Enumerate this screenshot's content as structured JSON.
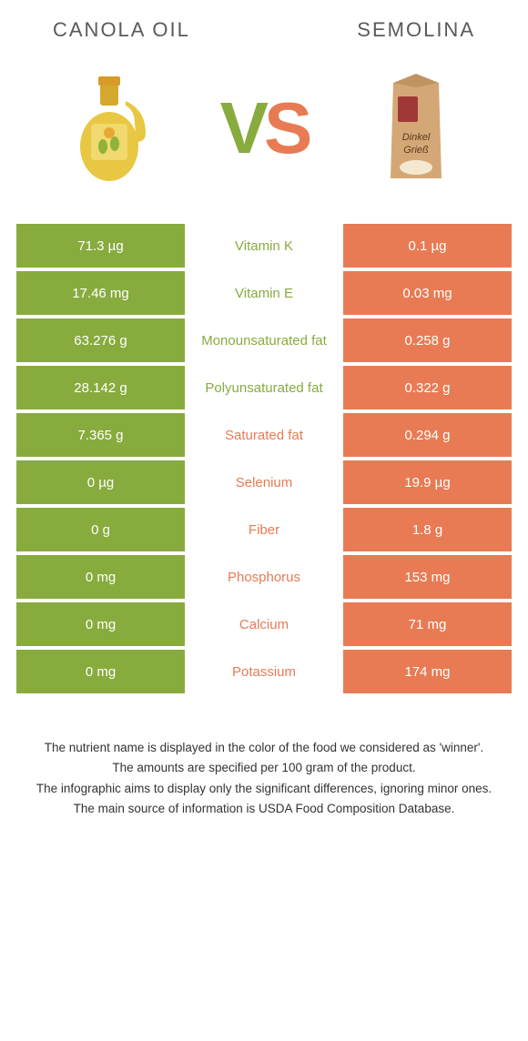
{
  "header": {
    "left_title": "CANOLA OIL",
    "right_title": "SEMOLINA"
  },
  "colors": {
    "left": "#88ab3e",
    "right": "#e87b54",
    "row_gap": "#ffffff"
  },
  "vs": {
    "v": "V",
    "s": "S"
  },
  "nutrients": [
    {
      "label": "Vitamin K",
      "left": "71.3 µg",
      "right": "0.1 µg",
      "winner": "left"
    },
    {
      "label": "Vitamin E",
      "left": "17.46 mg",
      "right": "0.03 mg",
      "winner": "left"
    },
    {
      "label": "Monounsaturated fat",
      "left": "63.276 g",
      "right": "0.258 g",
      "winner": "left"
    },
    {
      "label": "Polyunsaturated fat",
      "left": "28.142 g",
      "right": "0.322 g",
      "winner": "left"
    },
    {
      "label": "Saturated fat",
      "left": "7.365 g",
      "right": "0.294 g",
      "winner": "right"
    },
    {
      "label": "Selenium",
      "left": "0 µg",
      "right": "19.9 µg",
      "winner": "right"
    },
    {
      "label": "Fiber",
      "left": "0 g",
      "right": "1.8 g",
      "winner": "right"
    },
    {
      "label": "Phosphorus",
      "left": "0 mg",
      "right": "153 mg",
      "winner": "right"
    },
    {
      "label": "Calcium",
      "left": "0 mg",
      "right": "71 mg",
      "winner": "right"
    },
    {
      "label": "Potassium",
      "left": "0 mg",
      "right": "174 mg",
      "winner": "right"
    }
  ],
  "footer": {
    "line1": "The nutrient name is displayed in the color of the food we considered as 'winner'.",
    "line2": "The amounts are specified per 100 gram of the product.",
    "line3": "The infographic aims to display only the significant differences, ignoring minor ones.",
    "line4": "The main source of information is USDA Food Composition Database."
  }
}
